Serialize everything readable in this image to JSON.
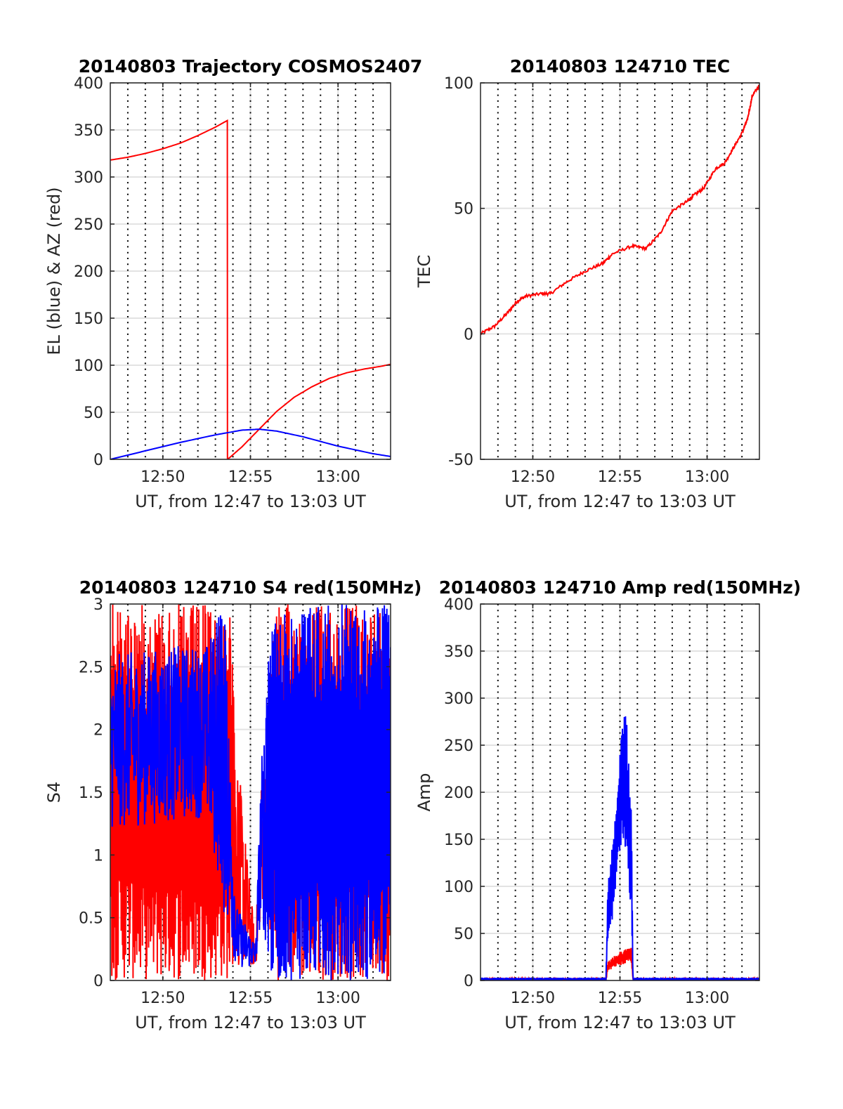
{
  "chart_data": [
    {
      "type": "line",
      "title": "20140803 Trajectory COSMOS2407",
      "xlabel": "UT, from 12:47 to 13:03 UT",
      "ylabel": "EL (blue) & AZ (red)",
      "xlim": [
        0,
        16
      ],
      "x_unit": "minutes after 12:47 UT",
      "xticks": [
        3,
        8,
        13
      ],
      "xtick_labels": [
        "12:50",
        "12:55",
        "13:00"
      ],
      "ylim": [
        0,
        400
      ],
      "yticks": [
        0,
        50,
        100,
        150,
        200,
        250,
        300,
        350,
        400
      ],
      "ytick_labels": [
        "0",
        "50",
        "100",
        "150",
        "200",
        "250",
        "300",
        "350",
        "400"
      ],
      "grid": true,
      "series": [
        {
          "name": "AZ",
          "color": "#ff0000",
          "x": [
            0,
            1,
            2,
            3,
            4,
            5,
            6,
            6.68,
            6.69,
            6.7,
            7.5,
            8.5,
            9.5,
            10.5,
            11.5,
            12.5,
            13.5,
            14.5,
            15.5,
            16
          ],
          "y": [
            318,
            321,
            325,
            330,
            336,
            344,
            353,
            360,
            0,
            0,
            13,
            32,
            51,
            66,
            77,
            86,
            92,
            96,
            99,
            101
          ]
        },
        {
          "name": "EL",
          "color": "#0000ff",
          "x": [
            0,
            2,
            4,
            6,
            7.5,
            8.5,
            9.5,
            11,
            13,
            15,
            16
          ],
          "y": [
            0,
            9,
            18,
            26,
            31,
            32,
            30,
            24,
            14,
            6,
            3
          ]
        }
      ]
    },
    {
      "type": "line",
      "title": "20140803 124710 TEC",
      "xlabel": "UT, from 12:47 to 13:03 UT",
      "ylabel": "TEC",
      "xlim": [
        0,
        16
      ],
      "xticks": [
        3,
        8,
        13
      ],
      "xtick_labels": [
        "12:50",
        "12:55",
        "13:00"
      ],
      "ylim": [
        -50,
        100
      ],
      "yticks": [
        -50,
        0,
        50,
        100
      ],
      "ytick_labels": [
        "-50",
        "0",
        "50",
        "100"
      ],
      "grid": true,
      "series": [
        {
          "name": "TEC",
          "color": "#ff0000",
          "x": [
            0,
            0.8,
            1.5,
            2.1,
            2.6,
            3.5,
            4.0,
            5.0,
            6.0,
            7.0,
            7.6,
            8.7,
            9.5,
            10.3,
            11.0,
            11.9,
            12.2,
            12.8,
            13.5,
            14.0,
            14.5,
            15.0,
            15.3,
            15.6,
            16.0
          ],
          "y": [
            0,
            3,
            8,
            13,
            15,
            16,
            16,
            21,
            25,
            28,
            32,
            35,
            34,
            40,
            49,
            53,
            55,
            58,
            66,
            68,
            74,
            80,
            85,
            95,
            99
          ]
        }
      ]
    },
    {
      "type": "line",
      "title": "20140803 124710 S4 red(150MHz)",
      "xlabel": "UT, from 12:47 to 13:03 UT",
      "ylabel": "S4",
      "xlim": [
        0,
        16
      ],
      "xticks": [
        3,
        8,
        13
      ],
      "xtick_labels": [
        "12:50",
        "12:55",
        "13:00"
      ],
      "ylim": [
        0,
        3
      ],
      "yticks": [
        0,
        0.5,
        1,
        1.5,
        2,
        2.5,
        3
      ],
      "ytick_labels": [
        "0",
        "0.5",
        "1",
        "1.5",
        "2",
        "2.5",
        "3"
      ],
      "grid": true,
      "note": "noisy series; envelope keypoints [x, low, high]",
      "series": [
        {
          "name": "red",
          "color": "#ff0000",
          "envelope": [
            [
              0,
              0,
              3
            ],
            [
              6.8,
              0,
              3
            ],
            [
              7.2,
              0.1,
              1.9
            ],
            [
              8.3,
              0.1,
              0.3
            ],
            [
              8.6,
              0.5,
              1.6
            ],
            [
              8.9,
              0.8,
              1.7
            ],
            [
              9.3,
              0,
              3
            ],
            [
              16,
              0,
              3
            ]
          ]
        },
        {
          "name": "blue",
          "color": "#0000ff",
          "envelope": [
            [
              0,
              1.2,
              2.6
            ],
            [
              5.5,
              1.3,
              2.7
            ],
            [
              6.5,
              0.5,
              3
            ],
            [
              7.2,
              0.1,
              0.6
            ],
            [
              8.3,
              0.1,
              0.3
            ],
            [
              8.6,
              0.5,
              1.7
            ],
            [
              9.2,
              0,
              3
            ],
            [
              16,
              0,
              3
            ]
          ]
        }
      ]
    },
    {
      "type": "line",
      "title": "20140803 124710 Amp red(150MHz)",
      "xlabel": "UT, from 12:47 to 13:03 UT",
      "ylabel": "Amp",
      "xlim": [
        0,
        16
      ],
      "xticks": [
        3,
        8,
        13
      ],
      "xtick_labels": [
        "12:50",
        "12:55",
        "13:00"
      ],
      "ylim": [
        0,
        400
      ],
      "yticks": [
        0,
        50,
        100,
        150,
        200,
        250,
        300,
        350,
        400
      ],
      "ytick_labels": [
        "0",
        "50",
        "100",
        "150",
        "200",
        "250",
        "300",
        "350",
        "400"
      ],
      "grid": true,
      "note": "noisy series; envelope keypoints [x, low, high]",
      "series": [
        {
          "name": "red",
          "color": "#ff0000",
          "envelope": [
            [
              0,
              0,
              2
            ],
            [
              7.2,
              0,
              2
            ],
            [
              7.3,
              10,
              20
            ],
            [
              7.8,
              15,
              28
            ],
            [
              8.4,
              18,
              35
            ],
            [
              8.65,
              18,
              35
            ],
            [
              8.75,
              0,
              2
            ],
            [
              16,
              0,
              2
            ]
          ]
        },
        {
          "name": "blue",
          "color": "#0000ff",
          "envelope": [
            [
              0,
              0,
              3
            ],
            [
              7.2,
              0,
              3
            ],
            [
              7.3,
              40,
              100
            ],
            [
              7.6,
              60,
              150
            ],
            [
              7.9,
              120,
              220
            ],
            [
              8.1,
              150,
              275
            ],
            [
              8.3,
              140,
              325
            ],
            [
              8.5,
              100,
              235
            ],
            [
              8.65,
              60,
              200
            ],
            [
              8.75,
              0,
              3
            ],
            [
              16,
              0,
              3
            ]
          ]
        }
      ]
    }
  ]
}
